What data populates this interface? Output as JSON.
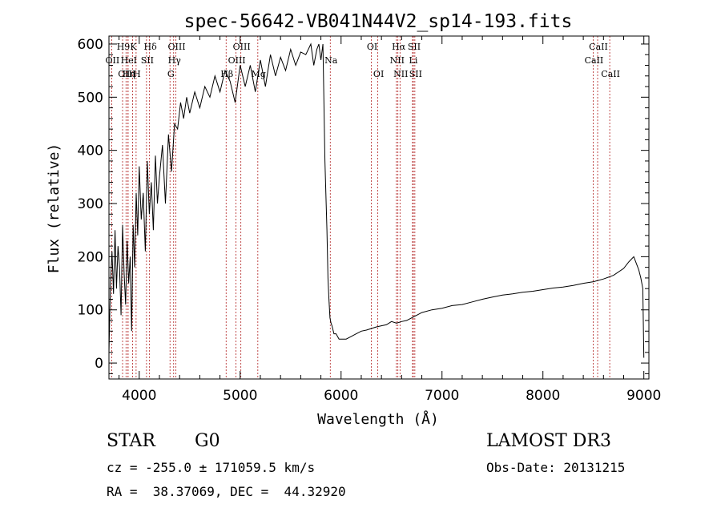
{
  "chart_data": {
    "type": "line",
    "title": "spec-56642-VB041N44V2_sp14-193.fits",
    "xlabel": "Wavelength (Å)",
    "ylabel": "Flux (relative)",
    "xlim": [
      3700,
      9050
    ],
    "ylim": [
      -30,
      615
    ],
    "xticks": [
      {
        "value": 4000,
        "label": "4000"
      },
      {
        "value": 5000,
        "label": "5000"
      },
      {
        "value": 6000,
        "label": "6000"
      },
      {
        "value": 7000,
        "label": "7000"
      },
      {
        "value": 8000,
        "label": "8000"
      },
      {
        "value": 9000,
        "label": "9000"
      }
    ],
    "yticks": [
      {
        "value": 0,
        "label": "0"
      },
      {
        "value": 100,
        "label": "100"
      },
      {
        "value": 200,
        "label": "200"
      },
      {
        "value": 300,
        "label": "300"
      },
      {
        "value": 400,
        "label": "400"
      },
      {
        "value": 500,
        "label": "500"
      },
      {
        "value": 600,
        "label": "600"
      }
    ],
    "series": [
      {
        "name": "flux",
        "x": [
          3700,
          3715,
          3730,
          3745,
          3760,
          3775,
          3790,
          3805,
          3820,
          3835,
          3850,
          3865,
          3880,
          3895,
          3910,
          3925,
          3940,
          3955,
          3970,
          3985,
          4000,
          4020,
          4040,
          4060,
          4080,
          4100,
          4120,
          4140,
          4160,
          4180,
          4200,
          4230,
          4260,
          4290,
          4320,
          4350,
          4380,
          4410,
          4440,
          4470,
          4500,
          4550,
          4600,
          4650,
          4700,
          4750,
          4800,
          4850,
          4900,
          4950,
          5000,
          5050,
          5100,
          5150,
          5200,
          5250,
          5300,
          5350,
          5400,
          5450,
          5500,
          5550,
          5600,
          5650,
          5700,
          5730,
          5760,
          5780,
          5800,
          5820,
          5840,
          5860,
          5870,
          5880,
          5890,
          5900,
          5910,
          5930,
          5950,
          5980,
          6000,
          6050,
          6100,
          6150,
          6200,
          6250,
          6300,
          6350,
          6400,
          6450,
          6500,
          6550,
          6600,
          6650,
          6700,
          6750,
          6800,
          6900,
          7000,
          7100,
          7200,
          7300,
          7400,
          7500,
          7600,
          7700,
          7800,
          7900,
          8000,
          8100,
          8200,
          8300,
          8400,
          8500,
          8600,
          8700,
          8800,
          8850,
          8900,
          8930,
          8950,
          8970,
          8990,
          9000
        ],
        "y": [
          20,
          150,
          210,
          130,
          250,
          140,
          220,
          180,
          90,
          260,
          170,
          110,
          230,
          150,
          200,
          60,
          260,
          180,
          320,
          240,
          370,
          270,
          320,
          210,
          380,
          280,
          340,
          250,
          390,
          300,
          350,
          410,
          300,
          430,
          360,
          450,
          440,
          490,
          460,
          500,
          470,
          510,
          480,
          520,
          500,
          540,
          510,
          550,
          530,
          490,
          560,
          520,
          560,
          510,
          570,
          520,
          580,
          540,
          575,
          550,
          590,
          560,
          585,
          580,
          600,
          560,
          590,
          600,
          570,
          600,
          380,
          250,
          160,
          120,
          85,
          75,
          70,
          55,
          55,
          45,
          45,
          45,
          50,
          55,
          60,
          62,
          65,
          68,
          70,
          72,
          78,
          75,
          78,
          80,
          85,
          90,
          95,
          100,
          103,
          108,
          110,
          115,
          120,
          124,
          128,
          130,
          133,
          135,
          138,
          141,
          143,
          146,
          150,
          153,
          158,
          165,
          178,
          190,
          200,
          185,
          175,
          160,
          140,
          10
        ]
      }
    ],
    "lines": [
      {
        "label": "H9",
        "wavelength": 3835,
        "row": 0
      },
      {
        "label": "K",
        "wavelength": 3934,
        "row": 0
      },
      {
        "label": "Hδ",
        "wavelength": 4102,
        "row": 0
      },
      {
        "label": "OII",
        "wavelength": 3727,
        "row": 1
      },
      {
        "label": "HeI",
        "wavelength": 3889,
        "row": 1
      },
      {
        "label": "SII",
        "wavelength": 4072,
        "row": 1
      },
      {
        "label": "OIII",
        "wavelength": 3869,
        "row": 2
      },
      {
        "label": "Hη",
        "wavelength": 3889,
        "row": 2
      },
      {
        "label": "H",
        "wavelength": 3969,
        "row": 2
      },
      {
        "label": "OIII",
        "wavelength": 4363,
        "row": 0
      },
      {
        "label": "Hγ",
        "wavelength": 4341,
        "row": 1
      },
      {
        "label": "G",
        "wavelength": 4305,
        "row": 2
      },
      {
        "label": "OIII",
        "wavelength": 5007,
        "row": 0
      },
      {
        "label": "OIII",
        "wavelength": 4959,
        "row": 1
      },
      {
        "label": "Hβ",
        "wavelength": 4861,
        "row": 2
      },
      {
        "label": "Mg",
        "wavelength": 5175,
        "row": 2
      },
      {
        "label": "Na",
        "wavelength": 5893,
        "row": 1
      },
      {
        "label": "OI",
        "wavelength": 6300,
        "row": 0
      },
      {
        "label": "OI",
        "wavelength": 6364,
        "row": 2
      },
      {
        "label": "Hα",
        "wavelength": 6563,
        "row": 0
      },
      {
        "label": "SII",
        "wavelength": 6716,
        "row": 0
      },
      {
        "label": "NII",
        "wavelength": 6548,
        "row": 1
      },
      {
        "label": "Li",
        "wavelength": 6708,
        "row": 1
      },
      {
        "label": "NII",
        "wavelength": 6584,
        "row": 2
      },
      {
        "label": "SII",
        "wavelength": 6731,
        "row": 2
      },
      {
        "label": "CaII",
        "wavelength": 8542,
        "row": 0
      },
      {
        "label": "CaII",
        "wavelength": 8498,
        "row": 1
      },
      {
        "label": "CaII",
        "wavelength": 8662,
        "row": 2
      }
    ]
  },
  "info": {
    "object_class": "STAR",
    "subclass": "G0",
    "survey": "LAMOST DR3",
    "velocity": "cz = -255.0 ± 171059.5 km/s",
    "obs_date": "Obs-Date: 20131215",
    "coords": "RA =  38.37069, DEC =  44.32920"
  },
  "colors": {
    "line_marker": "#b22222",
    "spectrum": "#000000",
    "axis": "#000000"
  }
}
